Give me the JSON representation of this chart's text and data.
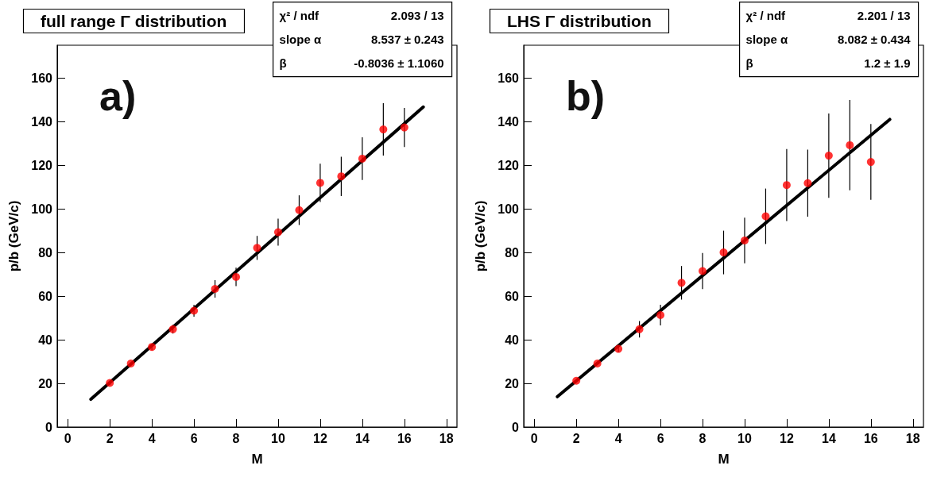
{
  "chart_data": [
    {
      "type": "scatter",
      "title": "full range Γ distribution",
      "xlabel": "M",
      "ylabel": "p/b (GeV/c)",
      "xlim": [
        -0.5,
        18.5
      ],
      "xticks": [
        0,
        2,
        4,
        6,
        8,
        10,
        12,
        14,
        16,
        18
      ],
      "ylim": [
        0,
        175
      ],
      "yticks": [
        0,
        20,
        40,
        60,
        80,
        100,
        120,
        140,
        160
      ],
      "grid": false,
      "series": [
        {
          "type": "scatter",
          "color": "#ff0000",
          "marker": "circle",
          "x": [
            2,
            3,
            4,
            5,
            6,
            7,
            8,
            9,
            10,
            11,
            12,
            13,
            14,
            15,
            16
          ],
          "values": [
            20.2,
            29.1,
            36.7,
            44.8,
            53.3,
            63.3,
            68.8,
            82.1,
            89.3,
            99.4,
            111.9,
            114.9,
            123.0,
            136.4,
            137.3
          ],
          "errors": [
            1,
            null,
            1.5,
            2,
            2.7,
            4,
            4.2,
            5.5,
            6.2,
            6.8,
            8.8,
            9,
            9.8,
            12,
            9
          ]
        },
        {
          "type": "line",
          "color": "#000000",
          "marker": "none",
          "line_style": "solid",
          "x": [
            1.1,
            16.9
          ],
          "values": [
            12.7,
            146.7
          ]
        }
      ],
      "annotations": [
        "a)",
        "χ² / ndf",
        "2.093 / 13",
        "slope α",
        "8.537 ± 0.243",
        "β",
        "-0.8036 ± 1.1060"
      ]
    },
    {
      "type": "scatter",
      "title": "LHS Γ distribution",
      "xlabel": "M",
      "ylabel": "p/b (GeV/c)",
      "xlim": [
        -0.5,
        18.5
      ],
      "xticks": [
        0,
        2,
        4,
        6,
        8,
        10,
        12,
        14,
        16,
        18
      ],
      "ylim": [
        0,
        175
      ],
      "yticks": [
        0,
        20,
        40,
        60,
        80,
        100,
        120,
        140,
        160
      ],
      "grid": false,
      "series": [
        {
          "type": "scatter",
          "color": "#ff0000",
          "marker": "circle",
          "x": [
            2,
            3,
            4,
            5,
            6,
            7,
            8,
            9,
            10,
            11,
            12,
            13,
            14,
            15,
            16
          ],
          "values": [
            21.2,
            29.1,
            35.8,
            44.8,
            51.3,
            66.1,
            71.5,
            80,
            85.5,
            96.6,
            110.9,
            111.8,
            124.4,
            129.2,
            121.5
          ],
          "errors": [
            null,
            null,
            1.5,
            3.8,
            4.7,
            7.7,
            8.3,
            10,
            10.5,
            12.7,
            16.5,
            15.4,
            19.3,
            20.7,
            17.4
          ]
        },
        {
          "type": "line",
          "color": "#000000",
          "marker": "none",
          "line_style": "solid",
          "x": [
            1.1,
            16.9
          ],
          "values": [
            13.9,
            141.0
          ]
        }
      ],
      "annotations": [
        "b)",
        "χ² / ndf",
        "2.201 / 13",
        "slope α",
        "8.082 ± 0.434",
        "β",
        "1.2 ± 1.9"
      ]
    }
  ]
}
